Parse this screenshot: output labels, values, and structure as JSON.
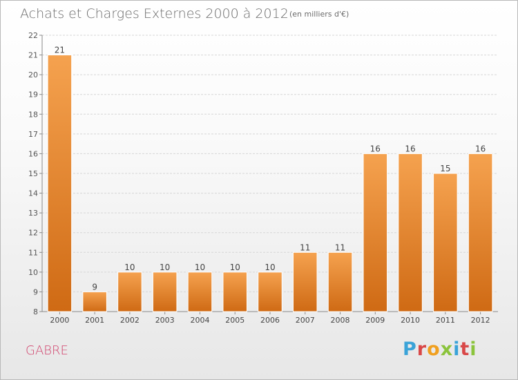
{
  "header": {
    "title": "Achats et Charges Externes 2000 à 2012",
    "unit_note": "(en milliers d'€)"
  },
  "footer": {
    "commune": "GABRE",
    "logo_text": "Proxiti"
  },
  "colors": {
    "bar_light": "#f5a24f",
    "bar_dark": "#cf6a14",
    "commune_text": "#d1406b",
    "logo_letters": [
      "#3aa3d8",
      "#d94848",
      "#f0a020",
      "#8bc43c",
      "#3aa3d8",
      "#d94848",
      "#8bc43c"
    ]
  },
  "chart_data": {
    "type": "bar",
    "title": "Achats et Charges Externes 2000 à 2012",
    "categories": [
      "2000",
      "2001",
      "2002",
      "2003",
      "2004",
      "2005",
      "2006",
      "2007",
      "2008",
      "2009",
      "2010",
      "2011",
      "2012"
    ],
    "values": [
      21,
      9,
      10,
      10,
      10,
      10,
      10,
      11,
      11,
      16,
      16,
      15,
      16
    ],
    "data_labels": [
      "21",
      "9",
      "10",
      "10",
      "10",
      "10",
      "10",
      "11",
      "11",
      "16",
      "16",
      "15",
      "16"
    ],
    "xlabel": "",
    "ylabel": "",
    "ylim": [
      8,
      22
    ],
    "yticks": [
      8,
      9,
      10,
      11,
      12,
      13,
      14,
      15,
      16,
      17,
      18,
      19,
      20,
      21,
      22
    ],
    "grid": true,
    "legend": "none"
  }
}
